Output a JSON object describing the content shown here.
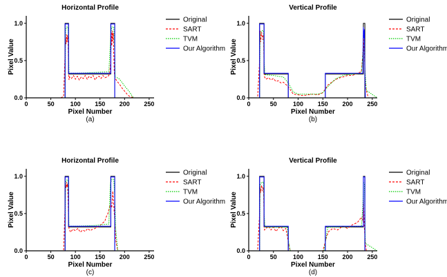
{
  "figure": {
    "panels": [
      "(a)",
      "(b)",
      "(c)",
      "(d)"
    ]
  },
  "chart_data": [
    {
      "type": "line",
      "title": "Horizontal Profile",
      "xlabel": "Pixel Number",
      "ylabel": "Pixel Value",
      "panel_label": "(a)",
      "xlim": [
        0,
        260
      ],
      "ylim": [
        0,
        1.1
      ],
      "xticks": [
        "0",
        "50",
        "100",
        "150",
        "200",
        "250"
      ],
      "yticks": [
        "0.0",
        "0.5",
        "1.0"
      ],
      "legend_position": "right",
      "grid": false,
      "series": [
        {
          "name": "Original",
          "color": "#000000",
          "style": "solid",
          "x": [
            0,
            79,
            79,
            86,
            86,
            172,
            172,
            180,
            180,
            260
          ],
          "y": [
            0,
            0,
            1.0,
            1.0,
            0.32,
            0.32,
            1.0,
            1.0,
            0,
            0
          ]
        },
        {
          "name": "SART",
          "color": "#ff0000",
          "style": "dashed",
          "x": [
            0,
            70,
            76,
            79,
            80,
            81,
            82,
            83,
            84,
            85,
            86,
            87,
            88,
            92,
            96,
            100,
            104,
            108,
            112,
            116,
            120,
            124,
            128,
            132,
            136,
            140,
            144,
            148,
            152,
            156,
            160,
            164,
            168,
            170,
            172,
            173,
            174,
            175,
            176,
            177,
            178,
            179,
            180,
            182,
            185,
            190,
            195,
            200,
            205,
            210,
            220,
            260
          ],
          "y": [
            0,
            0,
            0.02,
            0.6,
            0.8,
            0.72,
            0.85,
            0.75,
            0.84,
            0.78,
            0.4,
            0.24,
            0.28,
            0.26,
            0.3,
            0.25,
            0.29,
            0.24,
            0.28,
            0.26,
            0.3,
            0.25,
            0.29,
            0.27,
            0.3,
            0.24,
            0.28,
            0.29,
            0.26,
            0.3,
            0.27,
            0.28,
            0.3,
            0.35,
            0.5,
            0.88,
            0.7,
            0.9,
            0.76,
            0.87,
            0.6,
            0.35,
            0.27,
            0.25,
            0.22,
            0.18,
            0.13,
            0.09,
            0.05,
            0.02,
            0,
            0
          ]
        },
        {
          "name": "TVM",
          "color": "#00cc00",
          "style": "dotted",
          "x": [
            0,
            79,
            80,
            82,
            85,
            86,
            87,
            100,
            140,
            168,
            172,
            174,
            178,
            180,
            181,
            185,
            190,
            200,
            210,
            218,
            260
          ],
          "y": [
            0,
            0,
            0.9,
            0.95,
            0.95,
            0.7,
            0.33,
            0.33,
            0.34,
            0.35,
            0.85,
            0.95,
            0.95,
            0.6,
            0.28,
            0.27,
            0.25,
            0.16,
            0.08,
            0,
            0
          ]
        },
        {
          "name": "Our Algorithm",
          "color": "#0000ff",
          "style": "solid",
          "x": [
            0,
            79,
            79,
            86,
            86,
            172,
            172,
            180,
            180,
            260
          ],
          "y": [
            0,
            0,
            0.99,
            0.99,
            0.33,
            0.33,
            0.99,
            0.99,
            0,
            0
          ]
        }
      ]
    },
    {
      "type": "line",
      "title": "Vertical Profile",
      "xlabel": "Pixel Number",
      "ylabel": "Pixel Value",
      "panel_label": "(b)",
      "xlim": [
        0,
        260
      ],
      "ylim": [
        0,
        1.1
      ],
      "xticks": [
        "0",
        "50",
        "100",
        "150",
        "200",
        "250"
      ],
      "yticks": [
        "0.0",
        "0.5",
        "1.0"
      ],
      "legend_position": "right",
      "grid": false,
      "series": [
        {
          "name": "Original",
          "color": "#000000",
          "style": "solid",
          "x": [
            0,
            22,
            22,
            31,
            31,
            80,
            80,
            155,
            155,
            232,
            232,
            235,
            235,
            260
          ],
          "y": [
            0,
            0,
            1.0,
            1.0,
            0.32,
            0.32,
            0,
            0,
            0.32,
            0.32,
            1.0,
            1.0,
            0,
            0
          ]
        },
        {
          "name": "SART",
          "color": "#ff0000",
          "style": "dashed",
          "x": [
            0,
            18,
            22,
            23,
            24,
            26,
            28,
            30,
            31,
            32,
            35,
            40,
            45,
            50,
            55,
            60,
            65,
            70,
            75,
            80,
            85,
            90,
            100,
            110,
            120,
            130,
            140,
            150,
            155,
            160,
            170,
            180,
            190,
            200,
            210,
            220,
            228,
            231,
            232,
            233,
            234,
            235,
            236,
            238,
            242,
            260
          ],
          "y": [
            0,
            0,
            0.5,
            0.9,
            0.75,
            0.88,
            0.78,
            0.85,
            0.4,
            0.28,
            0.25,
            0.27,
            0.24,
            0.26,
            0.22,
            0.23,
            0.2,
            0.21,
            0.18,
            0.15,
            0.1,
            0.05,
            0.04,
            0.03,
            0.04,
            0.05,
            0.04,
            0.07,
            0.12,
            0.17,
            0.22,
            0.26,
            0.28,
            0.3,
            0.3,
            0.33,
            0.35,
            0.6,
            0.85,
            0.72,
            0.6,
            0.4,
            0.2,
            0.1,
            0,
            0
          ]
        },
        {
          "name": "TVM",
          "color": "#00cc00",
          "style": "dotted",
          "x": [
            0,
            22,
            23,
            26,
            30,
            31,
            33,
            50,
            70,
            80,
            90,
            100,
            140,
            150,
            160,
            175,
            190,
            210,
            228,
            231,
            232,
            234,
            235,
            238,
            260
          ],
          "y": [
            0,
            0,
            0.85,
            0.9,
            0.9,
            0.5,
            0.31,
            0.3,
            0.28,
            0.2,
            0.08,
            0.05,
            0.05,
            0.07,
            0.15,
            0.25,
            0.3,
            0.32,
            0.33,
            0.6,
            0.85,
            0.85,
            0.4,
            0.1,
            0
          ]
        },
        {
          "name": "Our Algorithm",
          "color": "#0000ff",
          "style": "solid",
          "x": [
            0,
            22,
            22,
            31,
            31,
            80,
            80,
            155,
            155,
            231,
            232,
            233,
            234,
            235,
            236,
            260
          ],
          "y": [
            0,
            0,
            0.99,
            0.99,
            0.33,
            0.33,
            0,
            0,
            0.33,
            0.33,
            0.95,
            0.8,
            0.92,
            0.3,
            0,
            0
          ]
        }
      ]
    },
    {
      "type": "line",
      "title": "Horizontal Profile",
      "xlabel": "Pixel Number",
      "ylabel": "Pixel Value",
      "panel_label": "(c)",
      "xlim": [
        0,
        260
      ],
      "ylim": [
        0,
        1.1
      ],
      "xticks": [
        "0",
        "50",
        "100",
        "150",
        "200",
        "250"
      ],
      "yticks": [
        "0.0",
        "0.5",
        "1.0"
      ],
      "legend_position": "right",
      "grid": false,
      "series": [
        {
          "name": "Original",
          "color": "#000000",
          "style": "solid",
          "x": [
            0,
            79,
            79,
            86,
            86,
            172,
            172,
            180,
            180,
            260
          ],
          "y": [
            0,
            0,
            1.0,
            1.0,
            0.32,
            0.32,
            1.0,
            1.0,
            0,
            0
          ]
        },
        {
          "name": "SART",
          "color": "#ff0000",
          "style": "dashed",
          "x": [
            0,
            76,
            79,
            80,
            81,
            82,
            83,
            84,
            85,
            86,
            87,
            90,
            95,
            100,
            105,
            110,
            115,
            120,
            125,
            130,
            135,
            140,
            145,
            150,
            155,
            160,
            163,
            166,
            168,
            170,
            172,
            174,
            176,
            178,
            180,
            182,
            186,
            260
          ],
          "y": [
            0,
            0,
            0.6,
            0.9,
            0.84,
            0.92,
            0.86,
            0.9,
            0.7,
            0.4,
            0.3,
            0.25,
            0.29,
            0.27,
            0.3,
            0.25,
            0.28,
            0.26,
            0.3,
            0.27,
            0.29,
            0.3,
            0.32,
            0.34,
            0.37,
            0.4,
            0.46,
            0.5,
            0.55,
            0.6,
            0.62,
            0.58,
            0.8,
            0.62,
            0.4,
            0.15,
            0,
            0
          ]
        },
        {
          "name": "TVM",
          "color": "#00cc00",
          "style": "dotted",
          "x": [
            0,
            79,
            80,
            82,
            85,
            86,
            87,
            100,
            140,
            168,
            171,
            174,
            178,
            180,
            182,
            186,
            260
          ],
          "y": [
            0,
            0,
            0.92,
            0.95,
            0.95,
            0.6,
            0.33,
            0.33,
            0.34,
            0.36,
            0.9,
            0.96,
            0.96,
            0.7,
            0.3,
            0,
            0
          ]
        },
        {
          "name": "Our Algorithm",
          "color": "#0000ff",
          "style": "solid",
          "x": [
            0,
            79,
            79,
            86,
            86,
            172,
            172,
            180,
            180,
            260
          ],
          "y": [
            0,
            0,
            0.99,
            0.99,
            0.33,
            0.33,
            0.99,
            0.99,
            0,
            0
          ]
        }
      ]
    },
    {
      "type": "line",
      "title": "Vertical Profile",
      "xlabel": "Pixel Number",
      "ylabel": "Pixel Value",
      "panel_label": "(d)",
      "xlim": [
        0,
        260
      ],
      "ylim": [
        0,
        1.1
      ],
      "xticks": [
        "0",
        "50",
        "100",
        "150",
        "200",
        "250"
      ],
      "yticks": [
        "0.0",
        "0.5",
        "1.0"
      ],
      "legend_position": "right",
      "grid": false,
      "series": [
        {
          "name": "Original",
          "color": "#000000",
          "style": "solid",
          "x": [
            0,
            22,
            22,
            31,
            31,
            80,
            80,
            155,
            155,
            232,
            232,
            235,
            235,
            260
          ],
          "y": [
            0,
            0,
            1.0,
            1.0,
            0.32,
            0.32,
            0,
            0,
            0.32,
            0.32,
            1.0,
            1.0,
            0,
            0
          ]
        },
        {
          "name": "SART",
          "color": "#ff0000",
          "style": "dashed",
          "x": [
            0,
            18,
            22,
            23,
            24,
            26,
            28,
            30,
            31,
            32,
            35,
            40,
            45,
            50,
            55,
            60,
            65,
            70,
            75,
            78,
            80,
            82,
            84,
            150,
            152,
            155,
            158,
            162,
            170,
            180,
            190,
            200,
            210,
            220,
            228,
            231,
            232,
            233,
            234,
            236,
            238,
            260
          ],
          "y": [
            0,
            0,
            0.5,
            0.85,
            0.78,
            0.88,
            0.8,
            0.86,
            0.4,
            0.28,
            0.3,
            0.33,
            0.28,
            0.32,
            0.26,
            0.3,
            0.33,
            0.27,
            0.3,
            0.2,
            0.12,
            0.05,
            0,
            0,
            0.05,
            0.12,
            0.2,
            0.26,
            0.3,
            0.28,
            0.33,
            0.3,
            0.35,
            0.38,
            0.45,
            0.4,
            0.7,
            0.5,
            0.3,
            0.1,
            0,
            0
          ]
        },
        {
          "name": "TVM",
          "color": "#00cc00",
          "style": "dotted",
          "x": [
            0,
            22,
            23,
            26,
            30,
            31,
            33,
            78,
            80,
            84,
            152,
            156,
            160,
            228,
            231,
            232,
            234,
            236,
            260
          ],
          "y": [
            0,
            0,
            0.88,
            0.92,
            0.92,
            0.5,
            0.32,
            0.32,
            0.15,
            0,
            0,
            0.15,
            0.32,
            0.33,
            0.6,
            0.92,
            0.9,
            0.1,
            0
          ]
        },
        {
          "name": "Our Algorithm",
          "color": "#0000ff",
          "style": "solid",
          "x": [
            0,
            22,
            22,
            31,
            31,
            80,
            80,
            155,
            155,
            232,
            232,
            235,
            235,
            260
          ],
          "y": [
            0,
            0,
            0.99,
            0.99,
            0.33,
            0.33,
            0,
            0,
            0.33,
            0.33,
            0.99,
            0.99,
            0,
            0
          ]
        }
      ]
    }
  ]
}
